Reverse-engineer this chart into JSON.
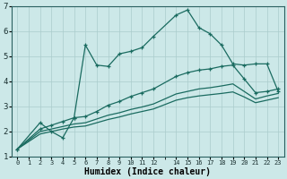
{
  "title": "",
  "xlabel": "Humidex (Indice chaleur)",
  "bg_color": "#cce8e8",
  "grid_color": "#aacccc",
  "line_color": "#1a6b60",
  "xlim": [
    -0.5,
    23.5
  ],
  "ylim": [
    1,
    7
  ],
  "xticks": [
    0,
    1,
    2,
    3,
    4,
    5,
    6,
    7,
    8,
    9,
    10,
    11,
    12,
    14,
    15,
    16,
    17,
    18,
    19,
    20,
    21,
    22,
    23
  ],
  "xtick_labels": [
    "0",
    "1",
    "2",
    "3",
    "4",
    "5",
    "6",
    "7",
    "8",
    "9",
    "10",
    "11",
    "12",
    "14",
    "15",
    "16",
    "17",
    "18",
    "19",
    "20",
    "21",
    "22",
    "23"
  ],
  "yticks": [
    1,
    2,
    3,
    4,
    5,
    6,
    7
  ],
  "line1_x": [
    0,
    2,
    3,
    4,
    5,
    6,
    7,
    8,
    9,
    10,
    11,
    12,
    14,
    15,
    16,
    17,
    18,
    19,
    20,
    21,
    22,
    23
  ],
  "line1_y": [
    1.3,
    2.35,
    2.0,
    1.75,
    2.55,
    5.45,
    4.65,
    4.6,
    5.1,
    5.2,
    5.35,
    5.8,
    6.65,
    6.85,
    6.15,
    5.9,
    5.45,
    4.7,
    4.65,
    4.7,
    4.7,
    3.6
  ],
  "line2_x": [
    0,
    2,
    3,
    4,
    5,
    6,
    7,
    8,
    9,
    10,
    11,
    12,
    14,
    15,
    16,
    17,
    18,
    19,
    20,
    21,
    22,
    23
  ],
  "line2_y": [
    1.3,
    2.1,
    2.25,
    2.4,
    2.55,
    2.6,
    2.8,
    3.05,
    3.2,
    3.4,
    3.55,
    3.7,
    4.2,
    4.35,
    4.45,
    4.5,
    4.6,
    4.65,
    4.1,
    3.55,
    3.6,
    3.7
  ],
  "line3_x": [
    0,
    2,
    3,
    4,
    5,
    6,
    7,
    8,
    9,
    10,
    11,
    12,
    14,
    15,
    16,
    17,
    18,
    19,
    20,
    21,
    22,
    23
  ],
  "line3_y": [
    1.3,
    2.0,
    2.1,
    2.2,
    2.3,
    2.35,
    2.5,
    2.65,
    2.75,
    2.88,
    2.98,
    3.1,
    3.5,
    3.6,
    3.7,
    3.75,
    3.82,
    3.9,
    3.6,
    3.3,
    3.42,
    3.52
  ],
  "line4_x": [
    0,
    2,
    3,
    4,
    5,
    6,
    7,
    8,
    9,
    10,
    11,
    12,
    14,
    15,
    16,
    17,
    18,
    19,
    20,
    21,
    22,
    23
  ],
  "line4_y": [
    1.3,
    1.9,
    2.0,
    2.1,
    2.18,
    2.22,
    2.35,
    2.48,
    2.58,
    2.7,
    2.8,
    2.9,
    3.25,
    3.35,
    3.42,
    3.47,
    3.52,
    3.58,
    3.38,
    3.15,
    3.25,
    3.35
  ]
}
